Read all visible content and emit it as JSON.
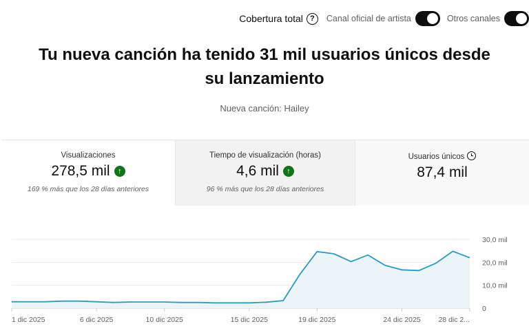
{
  "topbar": {
    "coverage_label": "Cobertura total",
    "help_icon": "help-circle-icon",
    "toggles": [
      {
        "label": "Canal oficial de artista",
        "on": true
      },
      {
        "label": "Otros canales",
        "on": true
      }
    ]
  },
  "headline": "Tu nueva canción ha tenido 31 mil usuarios únicos desde su lanzamiento",
  "subtitle": "Nueva canción: Hailey",
  "cards": [
    {
      "title": "Visualizaciones",
      "value": "278,5 mil",
      "trend": "up",
      "note": "169 % más que los 28 días anteriores"
    },
    {
      "title": "Tiempo de visualización (horas)",
      "value": "4,6 mil",
      "trend": "up",
      "note": "96 % más que los 28 días anteriores"
    },
    {
      "title": "Usuarios únicos",
      "value": "87,4 mil",
      "icon": "clock-icon"
    }
  ],
  "colors": {
    "line": "#2b9ac1",
    "fill": "#eaf5f9",
    "trend_up": "#107516"
  },
  "chart_data": {
    "type": "area",
    "x": [
      "1 dic",
      "2 dic",
      "3 dic",
      "4 dic",
      "5 dic",
      "6 dic",
      "7 dic",
      "8 dic",
      "9 dic",
      "10 dic",
      "11 dic",
      "12 dic",
      "13 dic",
      "14 dic",
      "15 dic",
      "16 dic",
      "17 dic",
      "18 dic",
      "19 dic",
      "20 dic",
      "21 dic",
      "22 dic",
      "23 dic",
      "24 dic",
      "25 dic",
      "26 dic",
      "27 dic",
      "28 dic"
    ],
    "values": [
      2.8,
      2.8,
      2.8,
      3.1,
      3.1,
      2.8,
      2.5,
      2.7,
      2.7,
      2.7,
      2.5,
      2.5,
      2.3,
      2.3,
      2.3,
      2.6,
      3.3,
      14.9,
      24.7,
      23.7,
      20.3,
      23.2,
      18.7,
      16.7,
      16.4,
      19.6,
      24.8,
      22.0
    ],
    "unit": "mil",
    "ylim": [
      0,
      30
    ],
    "yticks": [
      {
        "v": 0,
        "label": "0"
      },
      {
        "v": 10,
        "label": "10,0 mil"
      },
      {
        "v": 20,
        "label": "20,0 mil"
      },
      {
        "v": 30,
        "label": "30,0 mil"
      }
    ],
    "xticks": [
      {
        "i": 0,
        "label": "1 dic 2025"
      },
      {
        "i": 5,
        "label": "6 dic 2025"
      },
      {
        "i": 9,
        "label": "10 dic 2025"
      },
      {
        "i": 14,
        "label": "15 dic 2025"
      },
      {
        "i": 18,
        "label": "19 dic 2025"
      },
      {
        "i": 23,
        "label": "24 dic 2025"
      },
      {
        "i": 27,
        "label": "28 dic 2..."
      }
    ],
    "grid": true
  }
}
